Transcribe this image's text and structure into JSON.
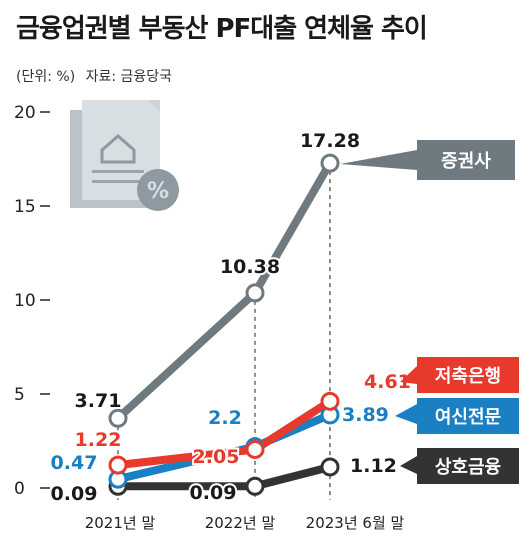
{
  "header": {
    "title": "금융업권별 부동산 PF대출 연체율 추이",
    "unit": "(단위: %)",
    "source": "자료: 금융당국"
  },
  "chart_data": {
    "type": "line",
    "title": "금융업권별 부동산 PF대출 연체율 추이",
    "xlabel": "",
    "ylabel": "",
    "ylim": [
      0,
      20
    ],
    "yticks": [
      0,
      5,
      10,
      15,
      20
    ],
    "categories": [
      "2021년 말",
      "2022년 말",
      "2023년 6월 말"
    ],
    "grid": false,
    "legend": "right",
    "series": [
      {
        "name": "증권사",
        "values": [
          3.71,
          10.38,
          17.28
        ],
        "labels": [
          "3.71",
          "10.38",
          "17.28"
        ],
        "color": "#6e7a80"
      },
      {
        "name": "저축은행",
        "values": [
          1.22,
          2.05,
          4.61
        ],
        "labels": [
          "1.22",
          "2.05",
          "4.61"
        ],
        "color": "#e8392d"
      },
      {
        "name": "여신전문",
        "values": [
          0.47,
          2.2,
          3.89
        ],
        "labels": [
          "0.47",
          "2.2",
          "3.89"
        ],
        "color": "#1b7fc4"
      },
      {
        "name": "상호금융",
        "values": [
          0.09,
          0.09,
          1.12
        ],
        "labels": [
          "0.09",
          "0.09",
          "1.12"
        ],
        "color": "#333333"
      }
    ]
  },
  "icons": {
    "illustration": "document-house-percent-icon"
  }
}
